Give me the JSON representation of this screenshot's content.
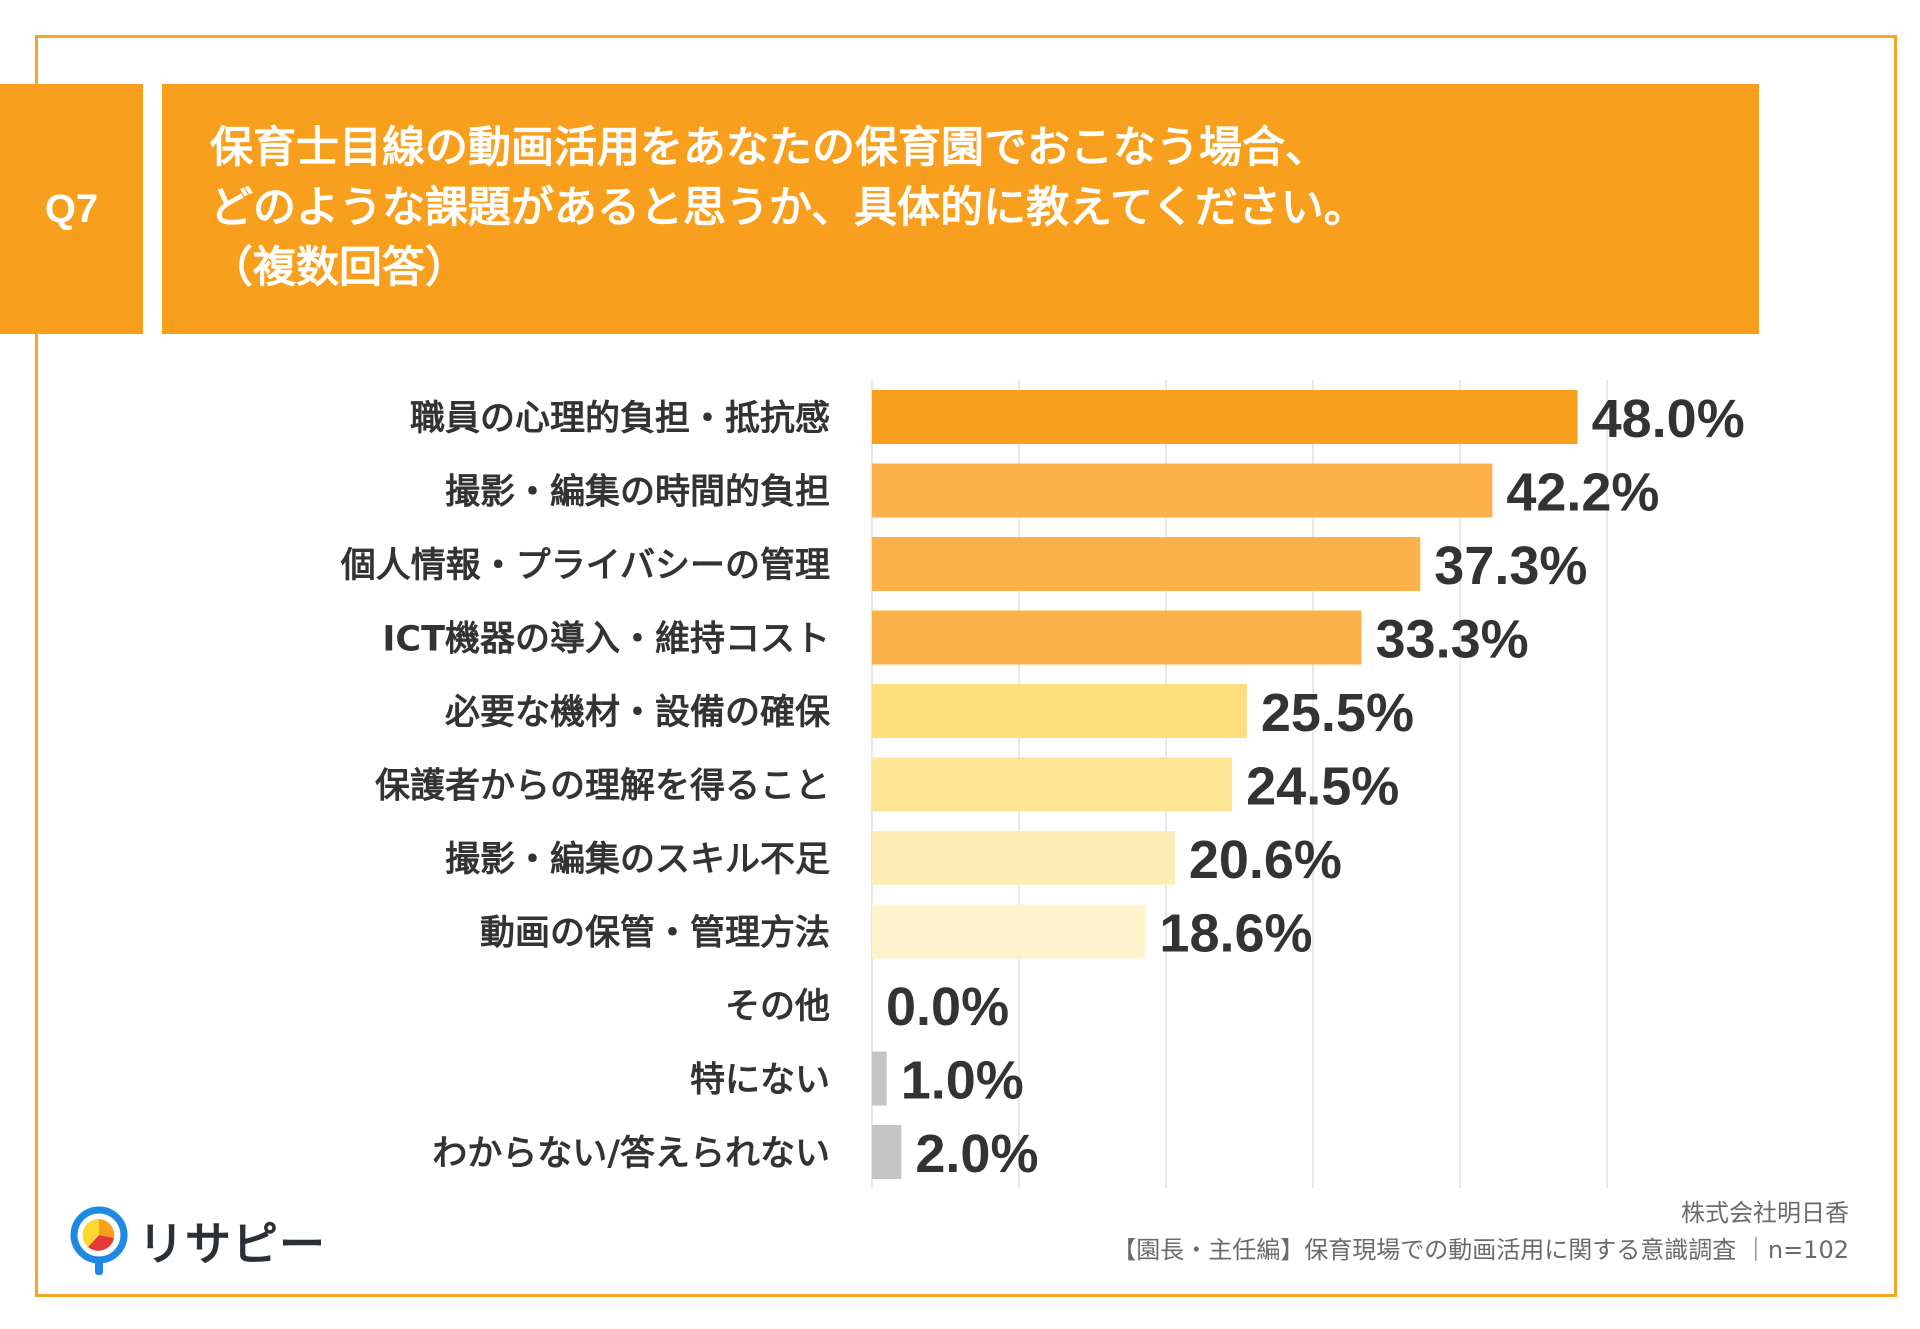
{
  "question": {
    "label": "Q7",
    "title_lines": [
      "保育士目線の動画活用をあなたの保育園でおこなう場合、",
      "どのような課題があると思うか、具体的に教えてください。",
      "（複数回答）"
    ]
  },
  "chart_data": {
    "type": "bar",
    "orientation": "horizontal",
    "categories": [
      "職員の心理的負担・抵抗感",
      "撮影・編集の時間的負担",
      "個人情報・プライバシーの管理",
      "ICT機器の導入・維持コスト",
      "必要な機材・設備の確保",
      "保護者からの理解を得ること",
      "撮影・編集のスキル不足",
      "動画の保管・管理方法",
      "その他",
      "特にない",
      "わからない/答えられない"
    ],
    "values": [
      48.0,
      42.2,
      37.3,
      33.3,
      25.5,
      24.5,
      20.6,
      18.6,
      0.0,
      1.0,
      2.0
    ],
    "value_labels": [
      "48.0%",
      "42.2%",
      "37.3%",
      "33.3%",
      "25.5%",
      "24.5%",
      "20.6%",
      "18.6%",
      "0.0%",
      "1.0%",
      "2.0%"
    ],
    "bar_colors": [
      "#F99F1E",
      "#FBB24B",
      "#FBB24B",
      "#FBB24B",
      "#FEDF7E",
      "#FEE596",
      "#FEEDB4",
      "#FEF3CC",
      "#C4C4C4",
      "#C4C4C4",
      "#C4C4C4"
    ],
    "xlim": [
      0,
      50
    ],
    "grid": true,
    "gridline_step": 10
  },
  "brand": {
    "logo_text": "リサピー",
    "logo_colors": [
      "#1E88E5",
      "#F99F1E",
      "#E53935",
      "#FDD835"
    ]
  },
  "credit": {
    "company": "株式会社明日香",
    "survey": "【園長・主任編】保育現場での動画活用に関する意識調査 ｜n=102"
  },
  "colors": {
    "accent": "#F99F1E",
    "frame": "#F5A623"
  }
}
